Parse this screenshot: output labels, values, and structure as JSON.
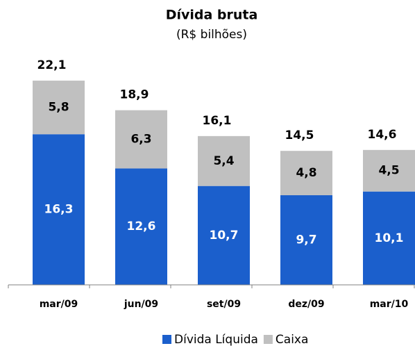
{
  "chart_data": {
    "type": "stacked_bar",
    "title": "Dívida bruta",
    "subtitle": "(R$ bilhões)",
    "categories": [
      "mar/09",
      "jun/09",
      "set/09",
      "dez/09",
      "mar/10"
    ],
    "series": [
      {
        "name": "Dívida Líquida",
        "color": "#1b5fcc",
        "values": [
          16.3,
          12.6,
          10.7,
          9.7,
          10.1
        ],
        "value_labels": [
          "16,3",
          "12,6",
          "10,7",
          "9,7",
          "10,1"
        ]
      },
      {
        "name": "Caixa",
        "color": "#c0c0c0",
        "values": [
          5.8,
          6.3,
          5.4,
          4.8,
          4.5
        ],
        "value_labels": [
          "5,8",
          "6,3",
          "5,4",
          "4,8",
          "4,5"
        ]
      }
    ],
    "totals": [
      22.1,
      18.9,
      16.1,
      14.5,
      14.6
    ],
    "total_labels": [
      "22,1",
      "18,9",
      "16,1",
      "14,5",
      "14,6"
    ]
  }
}
